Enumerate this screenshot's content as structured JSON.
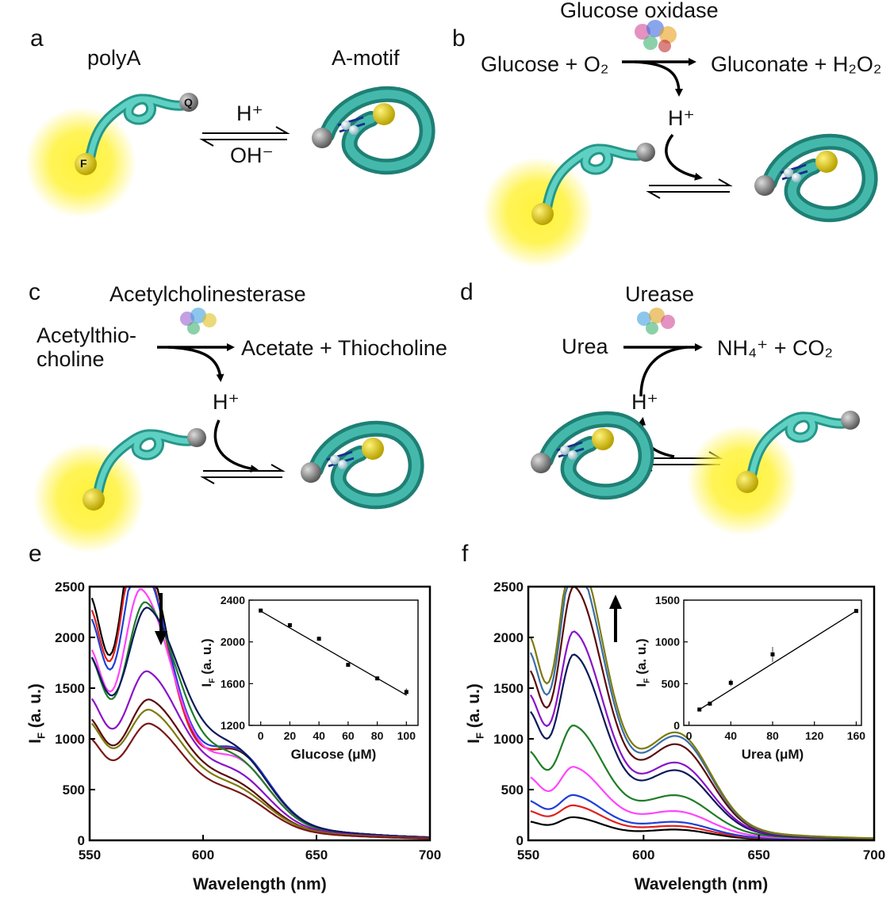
{
  "panels": {
    "a": {
      "letter": "a",
      "left_label": "polyA",
      "right_label": "A-motif",
      "forward": "H⁺",
      "reverse": "OH⁻"
    },
    "b": {
      "letter": "b",
      "enzyme": "Glucose oxidase",
      "substrate": "Glucose + O₂",
      "products": "Gluconate + H₂O₂",
      "proton": "H⁺"
    },
    "c": {
      "letter": "c",
      "enzyme": "Acetylcholinesterase",
      "substrate_line1": "Acetylthio-",
      "substrate_line2": "choline",
      "products": "Acetate + Thiocholine",
      "proton": "H⁺"
    },
    "d": {
      "letter": "d",
      "enzyme": "Urease",
      "substrate": "Urea",
      "products": "NH₄⁺ + CO₂",
      "proton": "H⁺"
    },
    "e": {
      "letter": "e"
    },
    "f": {
      "letter": "f"
    }
  },
  "molecule_labels": {
    "fluor": "F",
    "quencher": "Q",
    "h": "H"
  },
  "colors": {
    "strand_light": "#5fd1c3",
    "strand_dark": "#27968a",
    "glow": "#fff23a",
    "fluor": "#d8c400",
    "quencher": "#808080",
    "hbond": "#1a2f8c"
  },
  "chart_data": [
    {
      "type": "line",
      "panel": "e",
      "xlabel": "Wavelength (nm)",
      "ylabel": "I_F (a. u.)",
      "xlim": [
        550,
        700
      ],
      "ylim": [
        0,
        2500
      ],
      "xticks": [
        550,
        600,
        650,
        700
      ],
      "yticks": [
        0,
        500,
        1000,
        1500,
        2000,
        2500
      ],
      "arrow": "down",
      "series": [
        {
          "color": "#000000",
          "peak_x": 571,
          "peak": 2330,
          "start": 1150,
          "shoulder": 630,
          "end": 50
        },
        {
          "color": "#e0201c",
          "peak_x": 571,
          "peak": 2200,
          "start": 1030,
          "shoulder": 640,
          "end": 50
        },
        {
          "color": "#1f3fd6",
          "peak_x": 572,
          "peak": 2050,
          "start": 940,
          "shoulder": 640,
          "end": 50
        },
        {
          "color": "#ff44ff",
          "peak_x": 573,
          "peak": 1820,
          "start": 760,
          "shoulder": 570,
          "end": 45
        },
        {
          "color": "#1f7d27",
          "peak_x": 575,
          "peak": 1720,
          "start": 680,
          "shoulder": 560,
          "end": 45
        },
        {
          "color": "#0b1a5a",
          "peak_x": 576,
          "peak": 1610,
          "start": 560,
          "shoulder": 610,
          "end": 50
        },
        {
          "color": "#8a12c8",
          "peak_x": 576,
          "peak": 1120,
          "start": 400,
          "shoulder": 440,
          "end": 40
        },
        {
          "color": "#5a0a0a",
          "peak_x": 577,
          "peak": 920,
          "start": 320,
          "shoulder": 360,
          "end": 35
        },
        {
          "color": "#7d7a10",
          "peak_x": 577,
          "peak": 820,
          "start": 280,
          "shoulder": 320,
          "end": 35
        },
        {
          "color": "#7a1717",
          "peak_x": 577,
          "peak": 750,
          "start": 250,
          "shoulder": 290,
          "end": 30
        }
      ],
      "inset": {
        "xlabel": "Glucose (μM)",
        "ylabel": "I_F (a. u.)",
        "xlim": [
          -8,
          108
        ],
        "ylim": [
          1200,
          2400
        ],
        "xticks": [
          0,
          20,
          40,
          60,
          80,
          100
        ],
        "yticks": [
          1200,
          1600,
          2000,
          2400
        ],
        "x": [
          0,
          20,
          40,
          60,
          80,
          100
        ],
        "y": [
          2300,
          2160,
          2030,
          1780,
          1650,
          1520
        ],
        "err": [
          15,
          10,
          20,
          15,
          15,
          35
        ],
        "fit": [
          [
            0,
            2295
          ],
          [
            100,
            1490
          ]
        ]
      }
    },
    {
      "type": "line",
      "panel": "f",
      "xlabel": "Wavelength (nm)",
      "ylabel": "I_F (a. u.)",
      "xlim": [
        550,
        700
      ],
      "ylim": [
        0,
        2500
      ],
      "xticks": [
        550,
        600,
        650,
        700
      ],
      "yticks": [
        0,
        500,
        1000,
        1500,
        2000,
        2500
      ],
      "arrow": "up",
      "series": [
        {
          "color": "#000000",
          "peak_x": 570,
          "peak": 150,
          "start": 60,
          "shoulder": 80,
          "end": 5
        },
        {
          "color": "#e0201c",
          "peak_x": 570,
          "peak": 220,
          "start": 90,
          "shoulder": 100,
          "end": 8
        },
        {
          "color": "#1f3fd6",
          "peak_x": 570,
          "peak": 290,
          "start": 140,
          "shoulder": 130,
          "end": 10
        },
        {
          "color": "#ff44ff",
          "peak_x": 570,
          "peak": 490,
          "start": 250,
          "shoulder": 210,
          "end": 15
        },
        {
          "color": "#1f7d27",
          "peak_x": 570,
          "peak": 820,
          "start": 380,
          "shoulder": 340,
          "end": 20
        },
        {
          "color": "#0b1a5a",
          "peak_x": 570,
          "peak": 1440,
          "start": 650,
          "shoulder": 560,
          "end": 25
        },
        {
          "color": "#8a12c8",
          "peak_x": 570,
          "peak": 1620,
          "start": 740,
          "shoulder": 620,
          "end": 28
        },
        {
          "color": "#5a0a0a",
          "peak_x": 570,
          "peak": 2030,
          "start": 930,
          "shoulder": 790,
          "end": 30
        },
        {
          "color": "#3a6ea5",
          "peak_x": 570,
          "peak": 2260,
          "start": 1060,
          "shoulder": 860,
          "end": 32
        },
        {
          "color": "#7d7a10",
          "peak_x": 570,
          "peak": 2370,
          "start": 1140,
          "shoulder": 880,
          "end": 35
        }
      ],
      "inset": {
        "xlabel": "Urea (μM)",
        "ylabel": "I_F (a. u.)",
        "xlim": [
          -5,
          165
        ],
        "ylim": [
          0,
          1500
        ],
        "xticks": [
          0,
          40,
          80,
          120,
          160
        ],
        "yticks": [
          0,
          500,
          1000,
          1500
        ],
        "x": [
          10,
          20,
          40,
          80,
          160
        ],
        "y": [
          190,
          260,
          510,
          850,
          1370
        ],
        "err": [
          20,
          25,
          40,
          90,
          20
        ],
        "fit": [
          [
            10,
            190
          ],
          [
            160,
            1370
          ]
        ]
      }
    }
  ]
}
